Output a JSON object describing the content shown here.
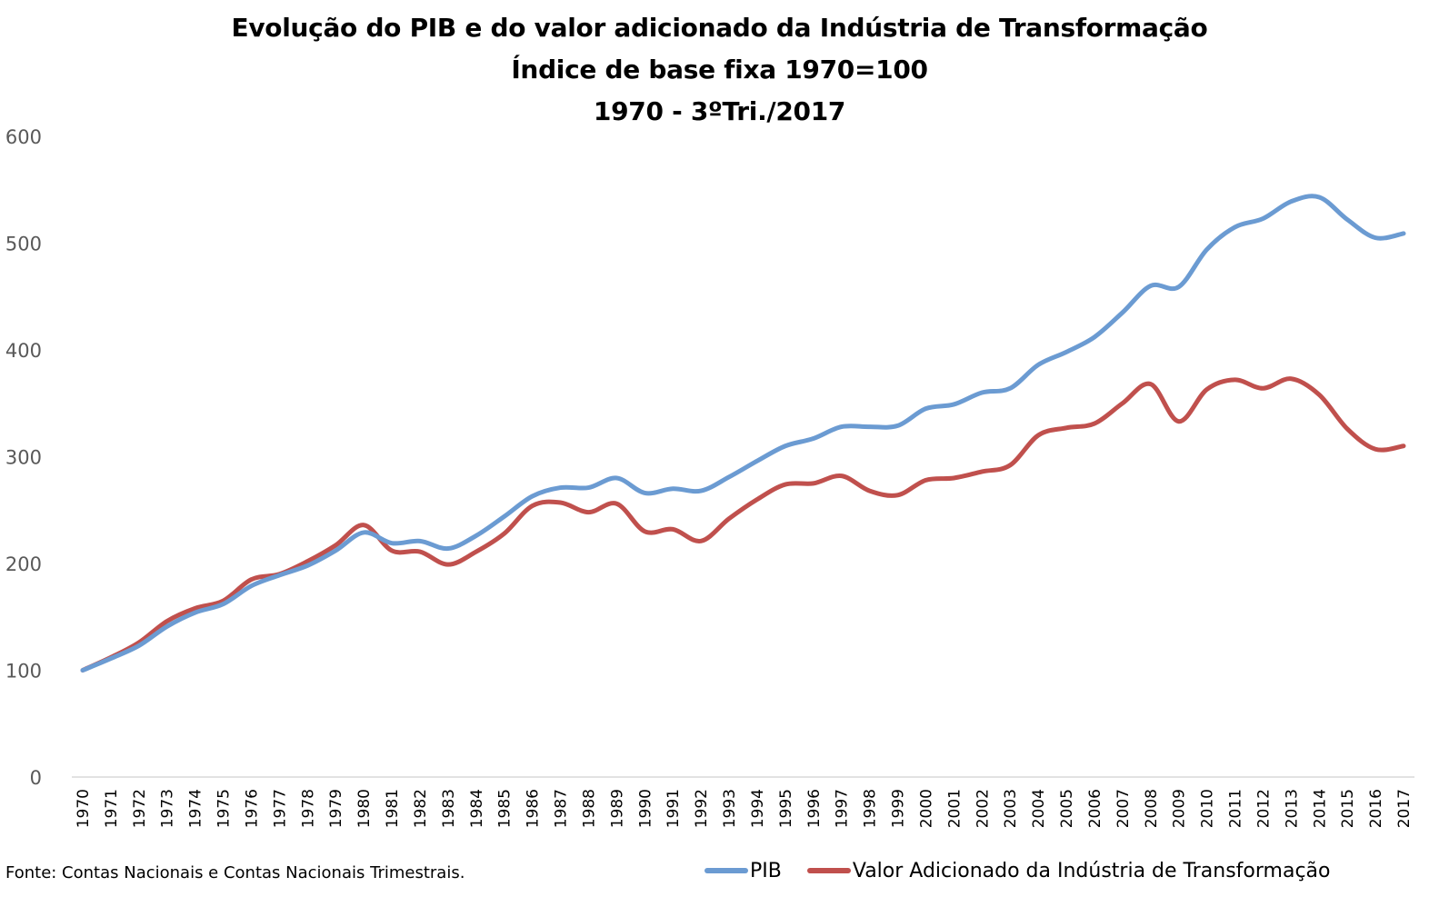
{
  "chart_data": {
    "type": "line",
    "title": "Evolução do PIB e do valor adicionado da Indústria de Transformação",
    "subtitle_lines": [
      "Índice de base fixa 1970=100",
      "1970 - 3ºTri./2017"
    ],
    "xlabel": "",
    "ylabel": "",
    "ylim": [
      0,
      600
    ],
    "yticks": [
      "0",
      "100",
      "200",
      "300",
      "400",
      "500",
      "600"
    ],
    "grid": false,
    "legend_position": "bottom",
    "categories": [
      "1970",
      "1971",
      "1972",
      "1973",
      "1974",
      "1975",
      "1976",
      "1977",
      "1978",
      "1979",
      "1980",
      "1981",
      "1982",
      "1983",
      "1984",
      "1985",
      "1986",
      "1987",
      "1988",
      "1989",
      "1990",
      "1991",
      "1992",
      "1993",
      "1994",
      "1995",
      "1996",
      "1997",
      "1998",
      "1999",
      "2000",
      "2001",
      "2002",
      "2003",
      "2004",
      "2005",
      "2006",
      "2007",
      "2008",
      "2009",
      "2010",
      "2011",
      "2012",
      "2013",
      "2014",
      "2015",
      "2016",
      "2017"
    ],
    "series": [
      {
        "name": "PIB",
        "color": "#6b9bd2",
        "values": [
          100,
          111,
          123,
          141,
          154,
          162,
          179,
          189,
          198,
          212,
          229,
          219,
          221,
          214,
          226,
          244,
          263,
          271,
          271,
          280,
          266,
          270,
          268,
          281,
          296,
          310,
          317,
          328,
          328,
          329,
          345,
          349,
          360,
          364,
          386,
          398,
          412,
          435,
          460,
          459,
          494,
          515,
          523,
          539,
          543,
          522,
          505,
          509
        ]
      },
      {
        "name": "Valor Adicionado da Indústria de Transformação",
        "color": "#c0504d",
        "values": [
          100,
          112,
          126,
          146,
          158,
          165,
          185,
          190,
          202,
          217,
          236,
          212,
          211,
          199,
          211,
          228,
          254,
          257,
          248,
          256,
          230,
          232,
          221,
          242,
          260,
          274,
          275,
          282,
          268,
          264,
          278,
          280,
          286,
          292,
          320,
          327,
          331,
          350,
          368,
          333,
          363,
          372,
          364,
          373,
          358,
          326,
          307,
          310
        ]
      }
    ]
  },
  "footer": {
    "source": "Fonte: Contas Nacionais e Contas Nacionais Trimestrais."
  }
}
